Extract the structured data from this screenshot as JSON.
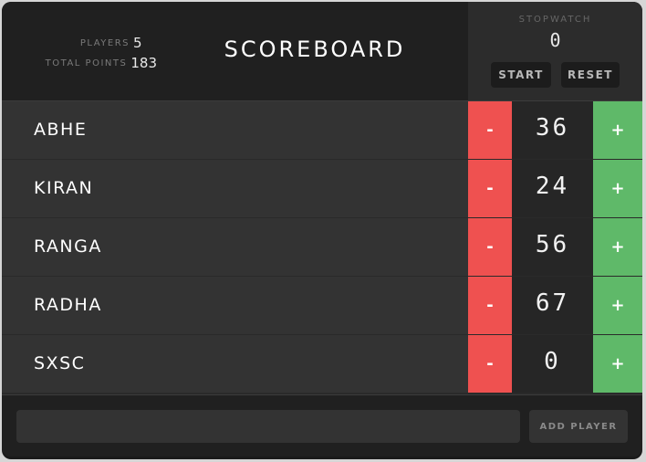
{
  "header": {
    "title": "SCOREBOARD",
    "stats": {
      "players_label": "PLAYERS",
      "players_value": "5",
      "points_label": "TOTAL POINTS",
      "points_value": "183"
    },
    "stopwatch": {
      "label": "STOPWATCH",
      "time": "0",
      "start_label": "START",
      "reset_label": "RESET"
    }
  },
  "players": [
    {
      "name": "ABHE",
      "score": "36"
    },
    {
      "name": "KIRAN",
      "score": "24"
    },
    {
      "name": "RANGA",
      "score": "56"
    },
    {
      "name": "RADHA",
      "score": "67"
    },
    {
      "name": "SXSC",
      "score": "0"
    }
  ],
  "controls": {
    "minus_label": "-",
    "plus_label": "+"
  },
  "footer": {
    "input_value": "",
    "input_placeholder": "",
    "add_label": "ADD PLAYER"
  },
  "colors": {
    "minus": "#ef5150",
    "plus": "#5fb969",
    "background": "#2a2a2a"
  }
}
